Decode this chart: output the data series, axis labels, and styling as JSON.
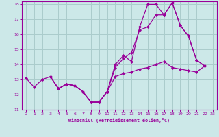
{
  "xlabel": "Windchill (Refroidissement éolien,°C)",
  "xlim": [
    -0.5,
    23.5
  ],
  "ylim": [
    11,
    18.2
  ],
  "yticks": [
    11,
    12,
    13,
    14,
    15,
    16,
    17,
    18
  ],
  "xticks": [
    0,
    1,
    2,
    3,
    4,
    5,
    6,
    7,
    8,
    9,
    10,
    11,
    12,
    13,
    14,
    15,
    16,
    17,
    18,
    19,
    20,
    21,
    22,
    23
  ],
  "bg_color": "#cce8e8",
  "grid_color": "#aacccc",
  "line_color": "#990099",
  "line1_x": [
    0,
    1,
    2,
    3,
    4,
    5,
    6,
    7,
    8,
    9,
    10,
    11,
    12,
    13,
    14,
    15,
    16,
    17,
    18,
    19,
    20,
    21,
    22
  ],
  "line1_y": [
    13.1,
    12.5,
    13.0,
    13.2,
    12.4,
    12.7,
    12.6,
    12.2,
    11.5,
    11.5,
    12.2,
    14.0,
    14.6,
    14.2,
    16.5,
    18.0,
    18.0,
    17.3,
    18.1,
    16.6,
    15.9,
    14.3,
    13.9
  ],
  "line2_x": [
    3,
    4,
    5,
    6,
    7,
    8,
    9,
    10,
    11,
    12,
    13,
    14,
    15,
    16,
    17,
    18,
    19,
    20,
    21,
    22
  ],
  "line2_y": [
    13.2,
    12.4,
    12.7,
    12.6,
    12.2,
    11.5,
    11.5,
    12.2,
    13.2,
    13.4,
    13.5,
    13.7,
    13.8,
    14.0,
    14.2,
    13.8,
    13.7,
    13.6,
    13.5,
    13.9
  ],
  "line3_x": [
    3,
    4,
    5,
    6,
    7,
    8,
    9,
    10,
    11,
    12,
    13,
    14,
    15,
    16,
    17,
    18,
    19,
    20,
    21,
    22
  ],
  "line3_y": [
    13.2,
    12.4,
    12.7,
    12.6,
    12.2,
    11.5,
    11.5,
    12.2,
    13.8,
    14.4,
    14.8,
    16.3,
    16.5,
    17.3,
    17.3,
    18.1,
    16.6,
    15.9,
    14.3,
    13.9
  ]
}
